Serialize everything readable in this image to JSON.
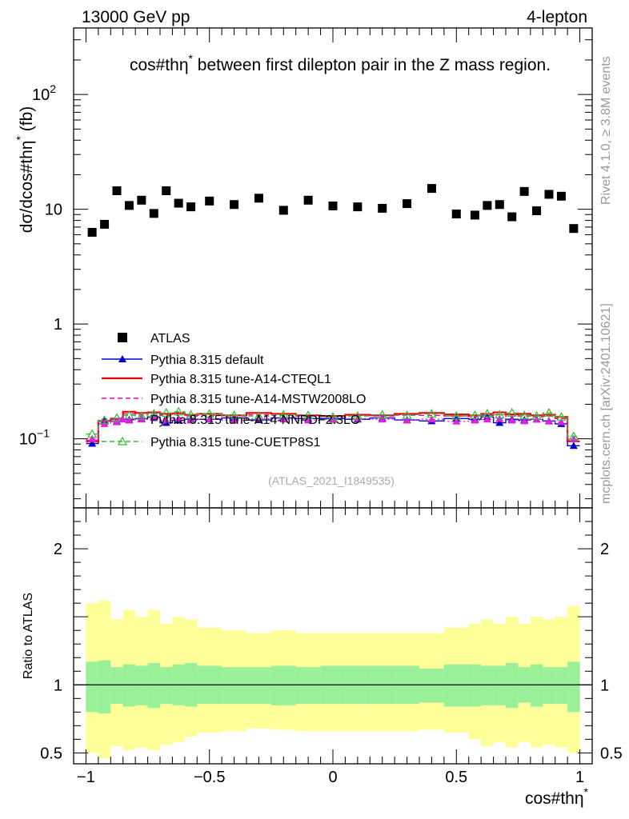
{
  "header": {
    "energy": "13000 GeV pp",
    "process": "4-lepton"
  },
  "side_labels": {
    "rivet": "Rivet 4.1.0, ≥ 3.8M events",
    "mcplots": "mcplots.cern.ch [arXiv:2401.10621]"
  },
  "chart_data": [
    {
      "type": "scatter",
      "panel": "main",
      "title": "cos#thη* between first dilepton pair in the Z mass region.",
      "title_main": "cos#thη",
      "title_sup": "*",
      "title_rest": " between first dilepton pair in the Z mass region.",
      "ylabel": "dσ/dcos#thη* (fb)",
      "ylabel_main": "dσ/dcos#thη",
      "ylabel_sup": "*",
      "ylabel_rest": " (fb)",
      "xlabel": "cos#thη*",
      "yscale": "log",
      "xlim": [
        -1.05,
        1.05
      ],
      "ylim": [
        0.025,
        380
      ],
      "yticks": [
        {
          "value": 100,
          "base": "10",
          "exp": "2"
        },
        {
          "value": 10,
          "base": "10",
          "exp": ""
        },
        {
          "value": 1,
          "base": "1",
          "exp": ""
        },
        {
          "value": 0.1,
          "base": "10",
          "exp": "−1"
        }
      ],
      "analysis_tag": "(ATLAS_2021_I1849535)",
      "bins": [
        [
          -1.0,
          -0.95
        ],
        [
          -0.95,
          -0.9
        ],
        [
          -0.9,
          -0.85
        ],
        [
          -0.85,
          -0.8
        ],
        [
          -0.8,
          -0.75
        ],
        [
          -0.75,
          -0.7
        ],
        [
          -0.7,
          -0.65
        ],
        [
          -0.65,
          -0.6
        ],
        [
          -0.6,
          -0.55
        ],
        [
          -0.55,
          -0.45
        ],
        [
          -0.45,
          -0.35
        ],
        [
          -0.35,
          -0.25
        ],
        [
          -0.25,
          -0.15
        ],
        [
          -0.15,
          -0.05
        ],
        [
          -0.05,
          0.05
        ],
        [
          0.05,
          0.15
        ],
        [
          0.15,
          0.25
        ],
        [
          0.25,
          0.35
        ],
        [
          0.35,
          0.45
        ],
        [
          0.45,
          0.55
        ],
        [
          0.55,
          0.6
        ],
        [
          0.6,
          0.65
        ],
        [
          0.65,
          0.7
        ],
        [
          0.7,
          0.75
        ],
        [
          0.75,
          0.8
        ],
        [
          0.8,
          0.85
        ],
        [
          0.85,
          0.9
        ],
        [
          0.9,
          0.95
        ],
        [
          0.95,
          1.0
        ]
      ],
      "x": [
        -0.975,
        -0.925,
        -0.875,
        -0.825,
        -0.775,
        -0.725,
        -0.675,
        -0.625,
        -0.575,
        -0.5,
        -0.4,
        -0.3,
        -0.2,
        -0.1,
        0.0,
        0.1,
        0.2,
        0.3,
        0.4,
        0.5,
        0.575,
        0.625,
        0.675,
        0.725,
        0.775,
        0.825,
        0.875,
        0.925,
        0.975
      ],
      "series": [
        {
          "name": "ATLAS",
          "style": "data",
          "color": "#000000",
          "values": [
            6.3,
            7.4,
            14.5,
            10.8,
            12.0,
            9.2,
            14.5,
            11.3,
            10.5,
            11.8,
            11.0,
            12.5,
            9.8,
            12.0,
            10.7,
            10.5,
            10.2,
            11.2,
            15.2,
            9.1,
            8.9,
            10.8,
            11.0,
            8.6,
            14.3,
            9.7,
            13.5,
            13.0,
            6.8
          ]
        },
        {
          "name": "Pythia 8.315 default",
          "style": "solid",
          "marker": "triangle-filled",
          "color": "#0000cc",
          "values": [
            0.091,
            0.142,
            0.142,
            0.147,
            0.15,
            0.155,
            0.138,
            0.145,
            0.148,
            0.148,
            0.152,
            0.146,
            0.152,
            0.15,
            0.15,
            0.148,
            0.152,
            0.146,
            0.143,
            0.15,
            0.148,
            0.155,
            0.138,
            0.148,
            0.146,
            0.148,
            0.143,
            0.135,
            0.087
          ]
        },
        {
          "name": "Pythia 8.315 tune-A14-CTEQL1",
          "style": "solid",
          "marker": "none",
          "color": "#ee0000",
          "values": [
            0.095,
            0.143,
            0.148,
            0.172,
            0.168,
            0.17,
            0.165,
            0.167,
            0.162,
            0.165,
            0.16,
            0.168,
            0.165,
            0.16,
            0.158,
            0.162,
            0.16,
            0.165,
            0.168,
            0.163,
            0.16,
            0.165,
            0.17,
            0.163,
            0.165,
            0.16,
            0.162,
            0.155,
            0.095
          ]
        },
        {
          "name": "Pythia 8.315 tune-A14-MSTW2008LO",
          "style": "dashed",
          "marker": "none",
          "color": "#ff00aa",
          "values": [
            0.097,
            0.142,
            0.15,
            0.165,
            0.162,
            0.168,
            0.16,
            0.165,
            0.158,
            0.16,
            0.158,
            0.162,
            0.16,
            0.158,
            0.157,
            0.16,
            0.158,
            0.162,
            0.16,
            0.158,
            0.156,
            0.16,
            0.163,
            0.157,
            0.158,
            0.155,
            0.157,
            0.15,
            0.098
          ]
        },
        {
          "name": "Pythia 8.315 tune-A14-NNPDF2.3LO",
          "style": "dotted",
          "marker": "triangle-filled",
          "color": "#dd22dd",
          "values": [
            0.1,
            0.135,
            0.14,
            0.145,
            0.148,
            0.152,
            0.145,
            0.15,
            0.145,
            0.148,
            0.145,
            0.15,
            0.148,
            0.145,
            0.147,
            0.15,
            0.148,
            0.145,
            0.148,
            0.142,
            0.145,
            0.148,
            0.15,
            0.145,
            0.143,
            0.148,
            0.142,
            0.14,
            0.1
          ]
        },
        {
          "name": "Pythia 8.315 tune-CUETP8S1",
          "style": "dashed",
          "marker": "triangle-open",
          "color": "#33bb33",
          "values": [
            0.11,
            0.145,
            0.152,
            0.16,
            0.158,
            0.165,
            0.168,
            0.172,
            0.162,
            0.165,
            0.16,
            0.158,
            0.162,
            0.16,
            0.155,
            0.158,
            0.162,
            0.16,
            0.165,
            0.158,
            0.16,
            0.165,
            0.162,
            0.168,
            0.16,
            0.158,
            0.168,
            0.155,
            0.105
          ]
        }
      ]
    },
    {
      "type": "area",
      "panel": "ratio",
      "ylabel": "Ratio to ATLAS",
      "xlabel": "cos#thη*",
      "xlabel_main": "cos#thη",
      "xlabel_sup": "*",
      "xlim": [
        -1.05,
        1.05
      ],
      "ylim": [
        0.42,
        2.3
      ],
      "xticks": [
        {
          "value": -1,
          "label": "−1"
        },
        {
          "value": -0.5,
          "label": "−0.5"
        },
        {
          "value": 0,
          "label": "0"
        },
        {
          "value": 0.5,
          "label": "0.5"
        },
        {
          "value": 1,
          "label": "1"
        }
      ],
      "yticks": [
        {
          "value": 2,
          "label": "2"
        },
        {
          "value": 1,
          "label": "1"
        },
        {
          "value": 0.5,
          "label": "0.5"
        }
      ],
      "reference_line": 1,
      "bands": {
        "stat_color": "#99f099",
        "total_color": "#ffff99",
        "stat_upper": [
          1.17,
          1.18,
          1.13,
          1.15,
          1.14,
          1.16,
          1.13,
          1.15,
          1.16,
          1.14,
          1.13,
          1.13,
          1.14,
          1.13,
          1.14,
          1.14,
          1.14,
          1.14,
          1.12,
          1.15,
          1.15,
          1.14,
          1.14,
          1.16,
          1.13,
          1.15,
          1.13,
          1.13,
          1.17
        ],
        "stat_lower": [
          0.8,
          0.79,
          0.86,
          0.84,
          0.85,
          0.83,
          0.86,
          0.85,
          0.84,
          0.86,
          0.86,
          0.86,
          0.85,
          0.86,
          0.86,
          0.86,
          0.86,
          0.86,
          0.87,
          0.84,
          0.84,
          0.85,
          0.85,
          0.83,
          0.87,
          0.84,
          0.86,
          0.86,
          0.8
        ],
        "total_upper": [
          1.6,
          1.62,
          1.48,
          1.55,
          1.5,
          1.55,
          1.45,
          1.5,
          1.48,
          1.42,
          1.4,
          1.38,
          1.4,
          1.38,
          1.38,
          1.38,
          1.38,
          1.38,
          1.38,
          1.42,
          1.45,
          1.48,
          1.45,
          1.5,
          1.45,
          1.5,
          1.48,
          1.5,
          1.58
        ],
        "total_lower": [
          0.5,
          0.46,
          0.55,
          0.52,
          0.54,
          0.52,
          0.56,
          0.58,
          0.62,
          0.65,
          0.66,
          0.68,
          0.67,
          0.66,
          0.66,
          0.66,
          0.66,
          0.66,
          0.67,
          0.65,
          0.6,
          0.55,
          0.58,
          0.54,
          0.58,
          0.54,
          0.56,
          0.54,
          0.5
        ]
      }
    }
  ]
}
